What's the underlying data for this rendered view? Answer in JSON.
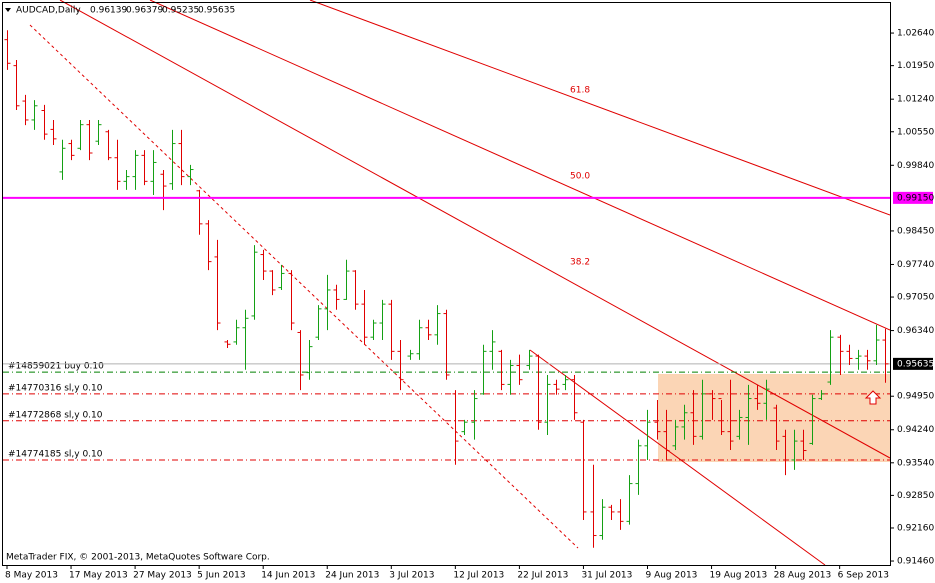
{
  "chart_data": {
    "type": "ohlc",
    "title": "AUDCAD,Daily",
    "footer": "MetaTrader FIX, © 2001-2013, MetaQuotes Software Corp.",
    "colors": {
      "up": "#14a014",
      "down": "#e00000",
      "background": "#ffffff"
    },
    "ylim": [
      0.91376,
      1.0334
    ],
    "xlim": [
      -0.765,
      96.503
    ],
    "yticks": [
      {
        "value": 1.0264,
        "label": "1.02640"
      },
      {
        "value": 1.0195,
        "label": "1.01950"
      },
      {
        "value": 1.0124,
        "label": "1.01240"
      },
      {
        "value": 1.0055,
        "label": "1.00550"
      },
      {
        "value": 0.9984,
        "label": "0.99840"
      },
      {
        "value": 0.9845,
        "label": "0.98450"
      },
      {
        "value": 0.9774,
        "label": "0.97740"
      },
      {
        "value": 0.9705,
        "label": "0.97050"
      },
      {
        "value": 0.9634,
        "label": "0.96340"
      },
      {
        "value": 0.9495,
        "label": "0.94950"
      },
      {
        "value": 0.9424,
        "label": "0.94240"
      },
      {
        "value": 0.9354,
        "label": "0.93540"
      },
      {
        "value": 0.9285,
        "label": "0.92850"
      },
      {
        "value": 0.9216,
        "label": "0.92160"
      },
      {
        "value": 0.9146,
        "label": "0.91460"
      }
    ],
    "xticks": [
      {
        "value": 0,
        "label": "8 May 2013"
      },
      {
        "value": 7,
        "label": "17 May 2013"
      },
      {
        "value": 14,
        "label": "27 May 2013"
      },
      {
        "value": 21,
        "label": "5 Jun 2013"
      },
      {
        "value": 28,
        "label": "14 Jun 2013"
      },
      {
        "value": 35,
        "label": "24 Jun 2013"
      },
      {
        "value": 42,
        "label": "3 Jul 2013"
      },
      {
        "value": 49,
        "label": "12 Jul 2013"
      },
      {
        "value": 56,
        "label": "22 Jul 2013"
      },
      {
        "value": 63,
        "label": "31 Jul 2013"
      },
      {
        "value": 70,
        "label": "9 Aug 2013"
      },
      {
        "value": 77,
        "label": "19 Aug 2013"
      },
      {
        "value": 84,
        "label": "28 Aug 2013"
      },
      {
        "value": 91,
        "label": "6 Sep 2013"
      }
    ],
    "ohlc": {
      "open": [
        1.025,
        1.0195,
        1.012,
        1.008,
        1.01,
        1.006,
        0.997,
        1.003,
        1.002,
        1.007,
        1.0035,
        1.0055,
        1.0,
        0.995,
        0.996,
        1.0005,
        0.995,
        0.9965,
        0.9945,
        1.003,
        0.996,
        0.993,
        0.986,
        0.979,
        0.961,
        0.961,
        0.964,
        0.9665,
        0.9795,
        0.976,
        0.9725,
        0.9755,
        0.963,
        0.9545,
        0.962,
        0.968,
        0.972,
        0.97,
        0.976,
        0.969,
        0.962,
        0.965,
        0.969,
        0.959,
        0.958,
        0.9585,
        0.964,
        0.9625,
        0.967,
        0.95,
        0.942,
        0.944,
        0.95,
        0.959,
        0.959,
        0.952,
        0.956,
        0.956,
        0.958,
        0.944,
        0.952,
        0.952,
        0.953,
        0.944,
        0.925,
        0.92,
        0.926,
        0.925,
        0.923,
        0.931,
        0.939,
        0.944,
        0.942,
        0.939,
        0.943,
        0.946,
        0.941,
        0.95,
        0.949,
        0.942,
        0.941,
        0.945,
        0.949,
        0.948,
        0.947,
        0.941,
        0.936,
        0.94,
        0.9395,
        0.949,
        0.9525,
        0.962,
        0.959,
        0.9575,
        0.958,
        0.957,
        0.96139
      ],
      "high": [
        1.027,
        1.0207,
        1.0133,
        1.0122,
        1.0112,
        1.008,
        1.0038,
        1.0038,
        1.008,
        1.008,
        1.008,
        1.0059,
        1.0038,
        0.9974,
        1.0016,
        1.0016,
        1.0016,
        0.9974,
        1.0059,
        1.0059,
        0.9985,
        0.9932,
        0.9868,
        0.9826,
        0.9614,
        0.9657,
        0.9678,
        0.9815,
        0.9805,
        0.9762,
        0.9773,
        0.9762,
        0.9635,
        0.9614,
        0.9688,
        0.9752,
        0.9731,
        0.9784,
        0.9762,
        0.972,
        0.9657,
        0.9699,
        0.9699,
        0.9614,
        0.9593,
        0.9657,
        0.9657,
        0.9688,
        0.9678,
        0.9508,
        0.9445,
        0.9508,
        0.9604,
        0.9635,
        0.9593,
        0.9572,
        0.9583,
        0.9593,
        0.9583,
        0.954,
        0.953,
        0.954,
        0.954,
        0.9445,
        0.935,
        0.9277,
        0.9265,
        0.9277,
        0.9328,
        0.9403,
        0.9466,
        0.9487,
        0.9466,
        0.9445,
        0.9477,
        0.9508,
        0.953,
        0.9508,
        0.9487,
        0.953,
        0.9466,
        0.9519,
        0.9519,
        0.953,
        0.9477,
        0.9424,
        0.9424,
        0.9424,
        0.9498,
        0.9508,
        0.9635,
        0.9625,
        0.9604,
        0.9593,
        0.9593,
        0.9646,
        0.96379
      ],
      "low": [
        1.0186,
        1.0101,
        1.0069,
        1.0059,
        1.0038,
        1.0027,
        0.9953,
        0.9995,
        1.0016,
        0.9995,
        1.0027,
        0.9995,
        0.9932,
        0.9932,
        0.9932,
        0.9942,
        0.9921,
        0.9889,
        0.9932,
        0.9942,
        0.9942,
        0.9837,
        0.9762,
        0.9635,
        0.9597,
        0.9604,
        0.9551,
        0.9657,
        0.9741,
        0.9709,
        0.972,
        0.9635,
        0.9508,
        0.953,
        0.9614,
        0.9635,
        0.9678,
        0.9699,
        0.9678,
        0.9604,
        0.9614,
        0.9614,
        0.9572,
        0.9508,
        0.9572,
        0.9572,
        0.9614,
        0.9604,
        0.953,
        0.935,
        0.9413,
        0.9403,
        0.9498,
        0.9551,
        0.9508,
        0.9498,
        0.9519,
        0.9551,
        0.9424,
        0.9413,
        0.9498,
        0.9508,
        0.9445,
        0.9233,
        0.9174,
        0.9191,
        0.9233,
        0.9212,
        0.9223,
        0.9286,
        0.936,
        0.9403,
        0.936,
        0.9381,
        0.9403,
        0.9392,
        0.9403,
        0.9445,
        0.9413,
        0.9381,
        0.9403,
        0.9392,
        0.9466,
        0.9445,
        0.9381,
        0.9328,
        0.9339,
        0.936,
        0.9392,
        0.9487,
        0.9519,
        0.954,
        0.9561,
        0.9551,
        0.9551,
        0.9561,
        0.95235
      ],
      "close": [
        1.02,
        1.011,
        1.008,
        1.011,
        1.005,
        1.004,
        1.002,
        1.0005,
        1.007,
        1.001,
        1.007,
        1.0,
        0.995,
        0.996,
        1.0005,
        0.995,
        0.999,
        0.994,
        1.003,
        0.996,
        0.9975,
        0.986,
        0.978,
        0.965,
        0.9605,
        0.964,
        0.966,
        0.98,
        0.976,
        0.972,
        0.9755,
        0.965,
        0.954,
        0.96,
        0.968,
        0.972,
        0.97,
        0.976,
        0.969,
        0.962,
        0.965,
        0.969,
        0.959,
        0.953,
        0.9585,
        0.964,
        0.9625,
        0.967,
        0.954,
        0.94,
        0.944,
        0.949,
        0.959,
        0.961,
        0.952,
        0.956,
        0.953,
        0.958,
        0.944,
        0.952,
        0.951,
        0.953,
        0.946,
        0.925,
        0.92,
        0.926,
        0.925,
        0.923,
        0.931,
        0.939,
        0.944,
        0.942,
        0.938,
        0.943,
        0.946,
        0.941,
        0.95,
        0.949,
        0.942,
        0.94,
        0.945,
        0.949,
        0.948,
        0.951,
        0.94,
        0.936,
        0.94,
        0.938,
        0.949,
        0.95,
        0.962,
        0.959,
        0.9575,
        0.958,
        0.957,
        0.9614,
        0.95635
      ]
    },
    "hline": {
      "value": 0.9915,
      "label": "0.99150",
      "color": "#ff00ff"
    },
    "orders": [
      {
        "label": "#14859021 buy 0.10",
        "price": 0.9546,
        "color": "#008000"
      },
      {
        "label": "#14770316 sl,y 0.10",
        "price": 0.95,
        "color": "#e00000"
      },
      {
        "label": "#14772868 sl,y 0.10",
        "price": 0.9443,
        "color": "#e00000"
      },
      {
        "label": "#14774185 sl,y 0.10",
        "price": 0.936,
        "color": "#e00000"
      }
    ],
    "fib_labels": [
      "61.8",
      "50.0",
      "38.2"
    ]
  }
}
